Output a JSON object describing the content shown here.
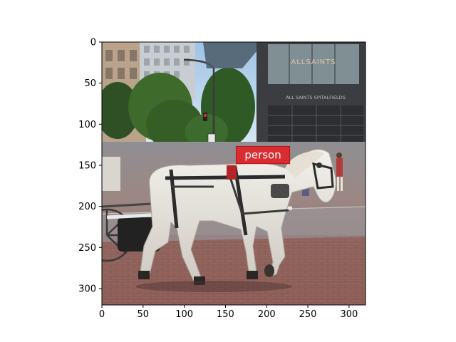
{
  "image": {
    "width": 320,
    "height": 320,
    "scene_elements": [
      "white-horse",
      "harness",
      "carriage-wheel",
      "brick-street",
      "storefront",
      "trees",
      "traffic-light",
      "pedestrians",
      "sky"
    ]
  },
  "axes": {
    "x_ticks": [
      "0",
      "50",
      "100",
      "150",
      "200",
      "250",
      "300"
    ],
    "y_ticks": [
      "0",
      "50",
      "100",
      "150",
      "200",
      "250",
      "300"
    ],
    "xlim": [
      0,
      320
    ],
    "ylim": [
      320,
      0
    ]
  },
  "scene": {
    "storefront_sign": "ALLSAINTS",
    "storefront_subsign": "ALL SAINTS SPITALFIELDS"
  },
  "detections": [
    {
      "label": "person",
      "box_color": "#e8191c",
      "text_color": "#ffffff",
      "label_x": 163,
      "label_y": 127,
      "label_w": 65,
      "label_h": 21
    }
  ]
}
